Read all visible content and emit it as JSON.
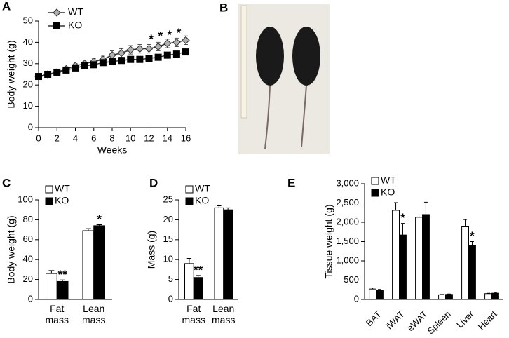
{
  "chart_data": [
    {
      "panel": "A",
      "type": "line",
      "xlabel": "Weeks",
      "ylabel": "Body weight (g)",
      "x": [
        0,
        1,
        2,
        3,
        4,
        5,
        6,
        7,
        8,
        9,
        10,
        11,
        12,
        13,
        14,
        15,
        16
      ],
      "xlim": [
        0,
        16
      ],
      "xticks": [
        0,
        2,
        4,
        6,
        8,
        10,
        12,
        14,
        16
      ],
      "ylim": [
        0,
        50
      ],
      "yticks": [
        0,
        10,
        20,
        30,
        40,
        50
      ],
      "series": [
        {
          "name": "WT",
          "color": "#b0b0b0",
          "marker": "diamond",
          "values": [
            24,
            25,
            26,
            27.5,
            29,
            30,
            31,
            32,
            34,
            35,
            36.5,
            37,
            37,
            38,
            39.5,
            40,
            41
          ],
          "errors": [
            1,
            1,
            1,
            1,
            1,
            1,
            1.5,
            1.5,
            2,
            2,
            2,
            2,
            2,
            2,
            2,
            2,
            2
          ]
        },
        {
          "name": "KO",
          "color": "#000000",
          "marker": "square",
          "values": [
            24,
            25,
            26,
            27,
            28,
            29,
            29.5,
            30.5,
            31,
            31.5,
            32,
            32,
            32.5,
            33,
            34,
            34.5,
            35.5
          ]
        }
      ],
      "annotations": [
        {
          "x": 13,
          "text": "*"
        },
        {
          "x": 14,
          "text": "*"
        },
        {
          "x": 15,
          "text": "*"
        },
        {
          "x": 16,
          "text": "*"
        }
      ]
    },
    {
      "panel": "B",
      "type": "image"
    },
    {
      "panel": "C",
      "type": "bar",
      "ylabel": "Body weight (g)",
      "categories": [
        "Fat mass",
        "Lean mass"
      ],
      "ylim": [
        0,
        100
      ],
      "yticks": [
        0,
        20,
        40,
        60,
        80,
        100
      ],
      "series": [
        {
          "name": "WT",
          "color": "#ffffff",
          "values": [
            26,
            69
          ],
          "errors": [
            3,
            2
          ]
        },
        {
          "name": "KO",
          "color": "#000000",
          "values": [
            18,
            74
          ],
          "errors": [
            1.5,
            1
          ],
          "stars": [
            "**",
            "*"
          ]
        }
      ]
    },
    {
      "panel": "D",
      "type": "bar",
      "ylabel": "Mass (g)",
      "categories": [
        "Fat mass",
        "Lean mass"
      ],
      "ylim": [
        0,
        25
      ],
      "yticks": [
        0,
        5,
        10,
        15,
        20,
        25
      ],
      "series": [
        {
          "name": "WT",
          "color": "#ffffff",
          "values": [
            9,
            23
          ],
          "errors": [
            1.3,
            0.5
          ]
        },
        {
          "name": "KO",
          "color": "#000000",
          "values": [
            5.5,
            22.5
          ],
          "errors": [
            0.5,
            0.5
          ],
          "stars": [
            "**",
            null
          ]
        }
      ]
    },
    {
      "panel": "E",
      "type": "bar",
      "ylabel": "Tissue weight (g)",
      "categories": [
        "BAT",
        "iWAT",
        "eWAT",
        "Spleen",
        "Liver",
        "Heart"
      ],
      "ylim": [
        0,
        3000
      ],
      "yticks": [
        0,
        500,
        {
          "value": 1000,
          "label": "1,000"
        },
        {
          "value": 1500,
          "label": "1,500"
        },
        {
          "value": 2000,
          "label": "2,000"
        },
        {
          "value": 2500,
          "label": "2,500"
        },
        {
          "value": 3000,
          "label": "3,000"
        }
      ],
      "series": [
        {
          "name": "WT",
          "color": "#ffffff",
          "values": [
            270,
            2310,
            2130,
            120,
            1900,
            150
          ],
          "errors": [
            30,
            200,
            60,
            10,
            170,
            10
          ]
        },
        {
          "name": "KO",
          "color": "#000000",
          "values": [
            230,
            1670,
            2200,
            130,
            1400,
            160
          ],
          "errors": [
            30,
            300,
            320,
            10,
            100,
            10
          ],
          "stars": [
            null,
            "*",
            null,
            null,
            "*",
            null
          ]
        }
      ]
    }
  ]
}
